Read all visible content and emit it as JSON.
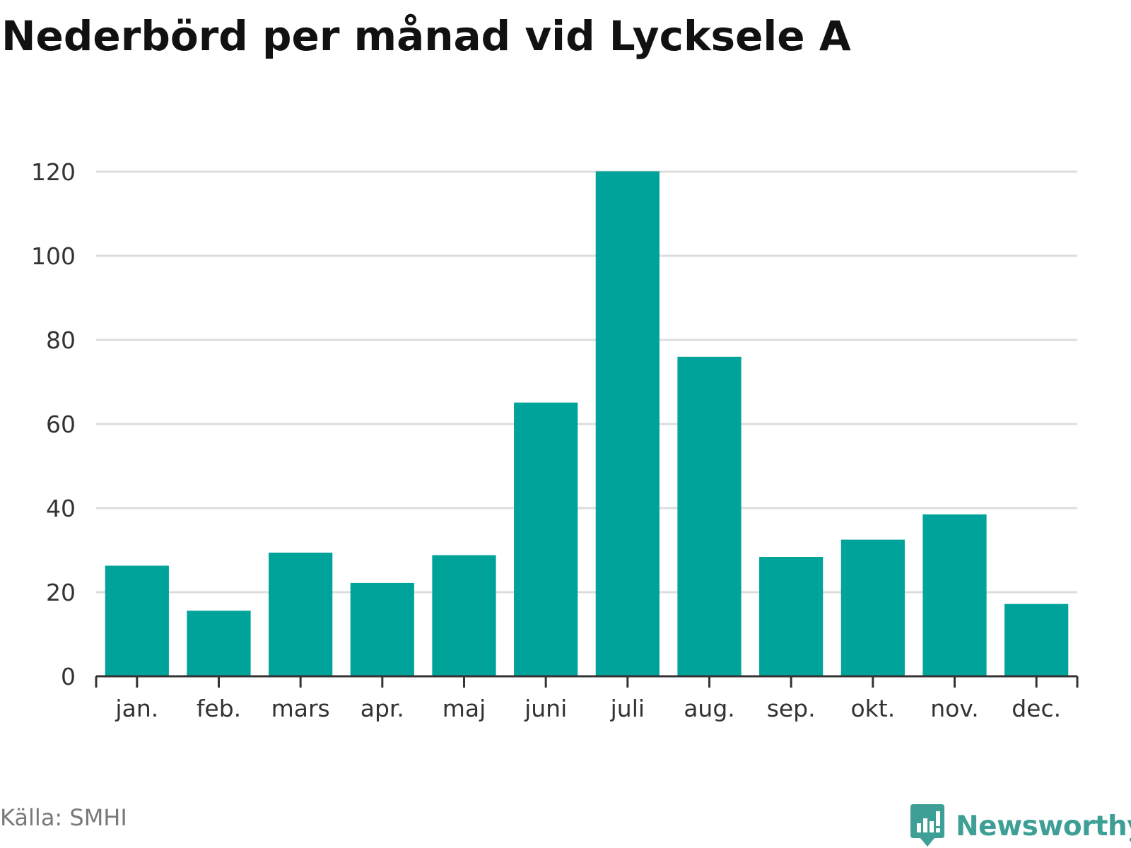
{
  "colors": {
    "bar": "#00a399",
    "brand": "#3d9f95",
    "grid": "#dddddd",
    "axis": "#333333",
    "tick_text": "#333333",
    "title": "#111111",
    "source": "#7a7a7a"
  },
  "source": "Källa: SMHI",
  "brand": {
    "name": "Newsworthy",
    "icon": "chat-bubble-bar-chart-icon"
  },
  "chart_data": {
    "type": "bar",
    "title": "Nederbörd per månad vid Lycksele A",
    "xlabel": "",
    "ylabel": "",
    "categories": [
      "jan.",
      "feb.",
      "mars",
      "apr.",
      "maj",
      "juni",
      "juli",
      "aug.",
      "sep.",
      "okt.",
      "nov.",
      "dec."
    ],
    "values": [
      26.3,
      15.6,
      29.4,
      22.2,
      28.8,
      65.1,
      120.1,
      76.0,
      28.4,
      32.5,
      38.5,
      17.2
    ],
    "ylim": [
      0,
      120
    ],
    "yticks": [
      0,
      20,
      40,
      60,
      80,
      100,
      120
    ],
    "grid": true,
    "legend": "none"
  }
}
